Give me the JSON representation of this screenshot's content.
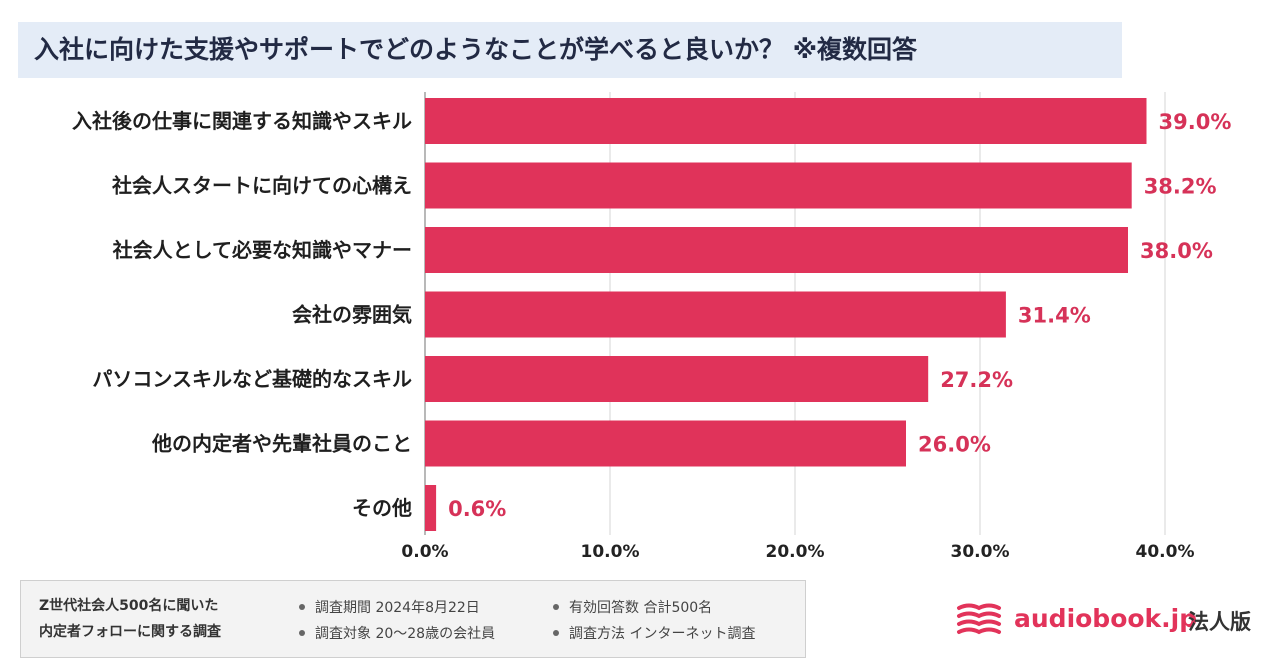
{
  "header": {
    "title": "入社に向けた支援やサポートでどのようなことが学べると良いか？ ※複数回答"
  },
  "colors": {
    "bar": "#e0335a",
    "value_label": "#d63258",
    "title_bg": "#e4ecf7",
    "grid": "#d4d4d4"
  },
  "chart_data": {
    "type": "bar",
    "orientation": "horizontal",
    "title": "入社に向けた支援やサポートでどのようなことが学べると良いか？ ※複数回答",
    "categories": [
      "入社後の仕事に関連する知識やスキル",
      "社会人スタートに向けての心構え",
      "社会人として必要な知識やマナー",
      "会社の雰囲気",
      "パソコンスキルなど基礎的なスキル",
      "他の内定者や先輩社員のこと",
      "その他"
    ],
    "values": [
      39.0,
      38.2,
      38.0,
      31.4,
      27.2,
      26.0,
      0.6
    ],
    "value_labels": [
      "39.0%",
      "38.2%",
      "38.0%",
      "31.4%",
      "27.2%",
      "26.0%",
      "0.6%"
    ],
    "xlim": [
      0,
      40
    ],
    "xticks": [
      0,
      10,
      20,
      30,
      40
    ],
    "xtick_labels": [
      "0.0%",
      "10.0%",
      "20.0%",
      "30.0%",
      "40.0%"
    ],
    "xlabel": "",
    "ylabel": "",
    "grid": true,
    "legend": "none"
  },
  "footer": {
    "survey_title_line1": "Z世代社会人500名に聞いた",
    "survey_title_line2": "内定者フォローに関する調査",
    "period": "調査期間 2024年8月22日",
    "target": "調査対象 20〜28歳の会社員",
    "responses": "有効回答数 合計500名",
    "method": "調査方法 インターネット調査"
  },
  "logo": {
    "icon": "book-pages-icon",
    "text": "audiobook.jp",
    "sub": "法人版"
  }
}
